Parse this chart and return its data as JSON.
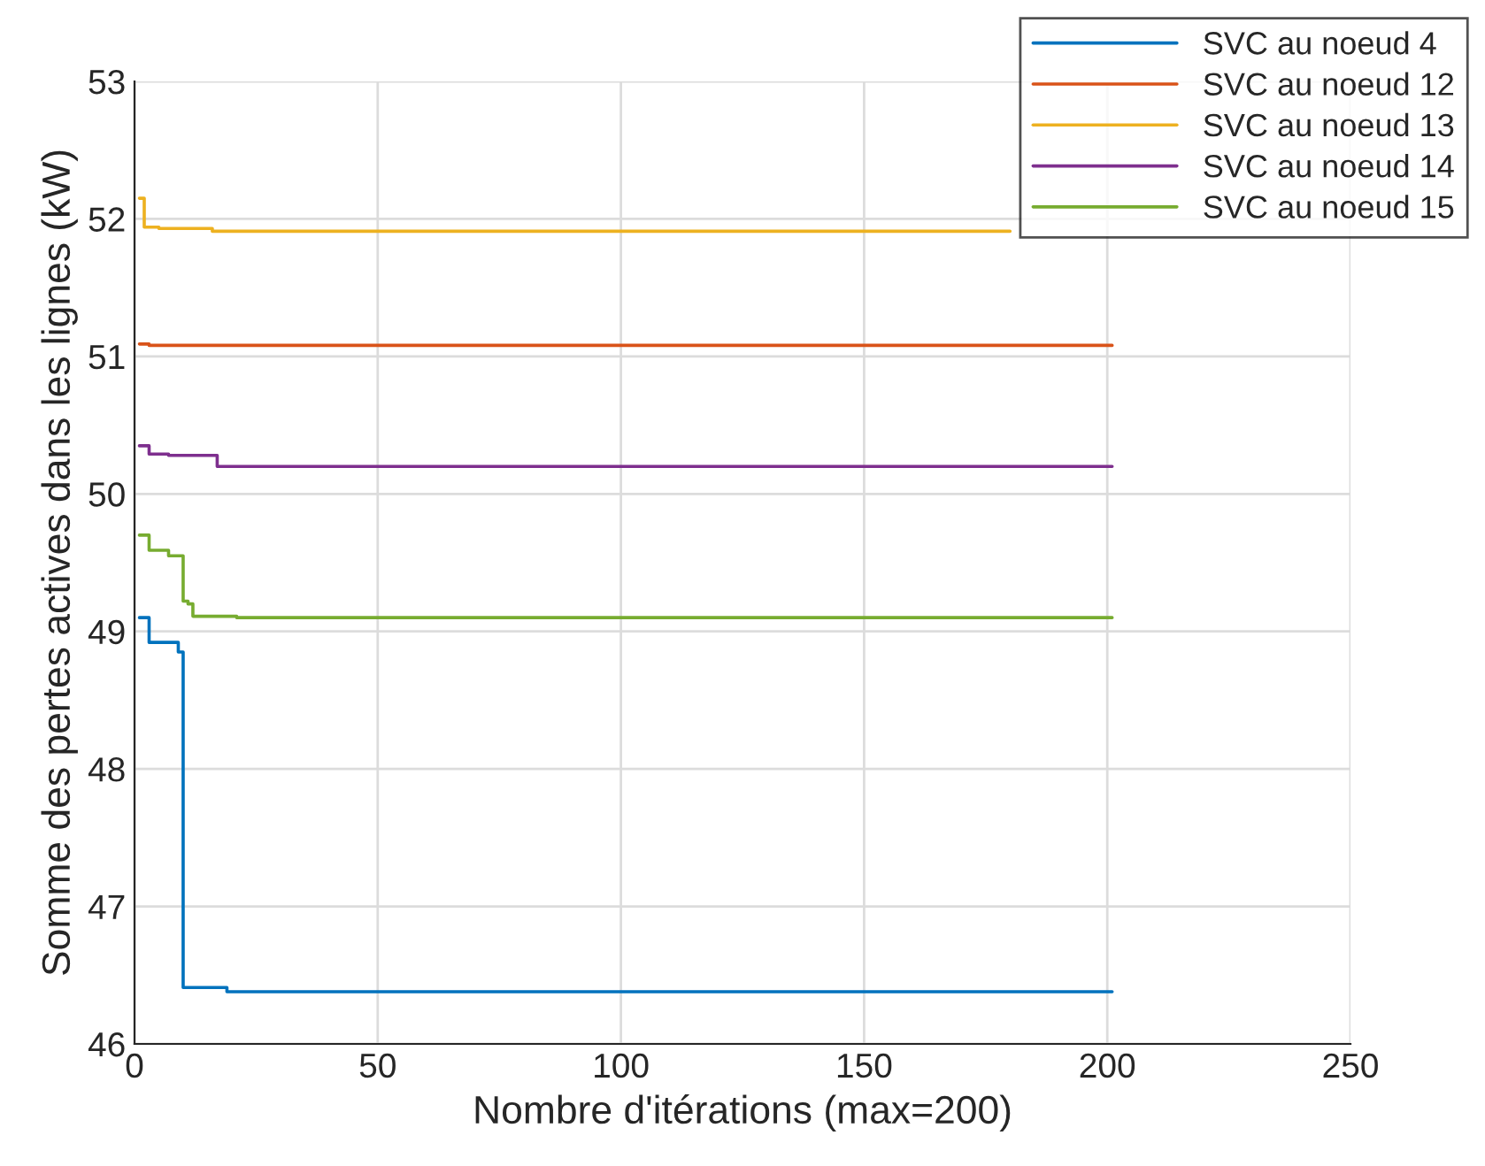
{
  "chart_data": {
    "type": "step",
    "xlabel": "Nombre d'itérations (max=200)",
    "ylabel": "Somme des pertes actives dans les lignes (kW)",
    "xlim": [
      0,
      250
    ],
    "xticks": [
      0,
      50,
      100,
      150,
      200,
      250
    ],
    "ylim": [
      46,
      53
    ],
    "yticks": [
      46,
      47,
      48,
      49,
      50,
      51,
      52,
      53
    ],
    "grid": true,
    "legend": "top right",
    "series": [
      {
        "name": "SVC au noeud 4",
        "color": "#0072bd",
        "x": [
          1,
          3,
          7,
          9,
          10,
          19,
          201
        ],
        "values": [
          49.1,
          48.92,
          48.92,
          48.85,
          46.41,
          46.38,
          46.38
        ]
      },
      {
        "name": "SVC au noeud 12",
        "color": "#d95319",
        "x": [
          1,
          3,
          201
        ],
        "values": [
          51.09,
          51.08,
          51.08
        ]
      },
      {
        "name": "SVC au noeud 13",
        "color": "#edb120",
        "x": [
          1,
          2,
          5,
          16,
          180
        ],
        "values": [
          52.15,
          51.94,
          51.93,
          51.91,
          51.91
        ]
      },
      {
        "name": "SVC au noeud 14",
        "color": "#7e2f8e",
        "x": [
          1,
          3,
          7,
          17,
          201
        ],
        "values": [
          50.35,
          50.29,
          50.28,
          50.2,
          50.2
        ]
      },
      {
        "name": "SVC au noeud 15",
        "color": "#77ac30",
        "x": [
          1,
          3,
          7,
          10,
          11,
          12,
          21,
          201
        ],
        "values": [
          49.7,
          49.59,
          49.55,
          49.22,
          49.2,
          49.11,
          49.1,
          49.1
        ]
      }
    ]
  }
}
